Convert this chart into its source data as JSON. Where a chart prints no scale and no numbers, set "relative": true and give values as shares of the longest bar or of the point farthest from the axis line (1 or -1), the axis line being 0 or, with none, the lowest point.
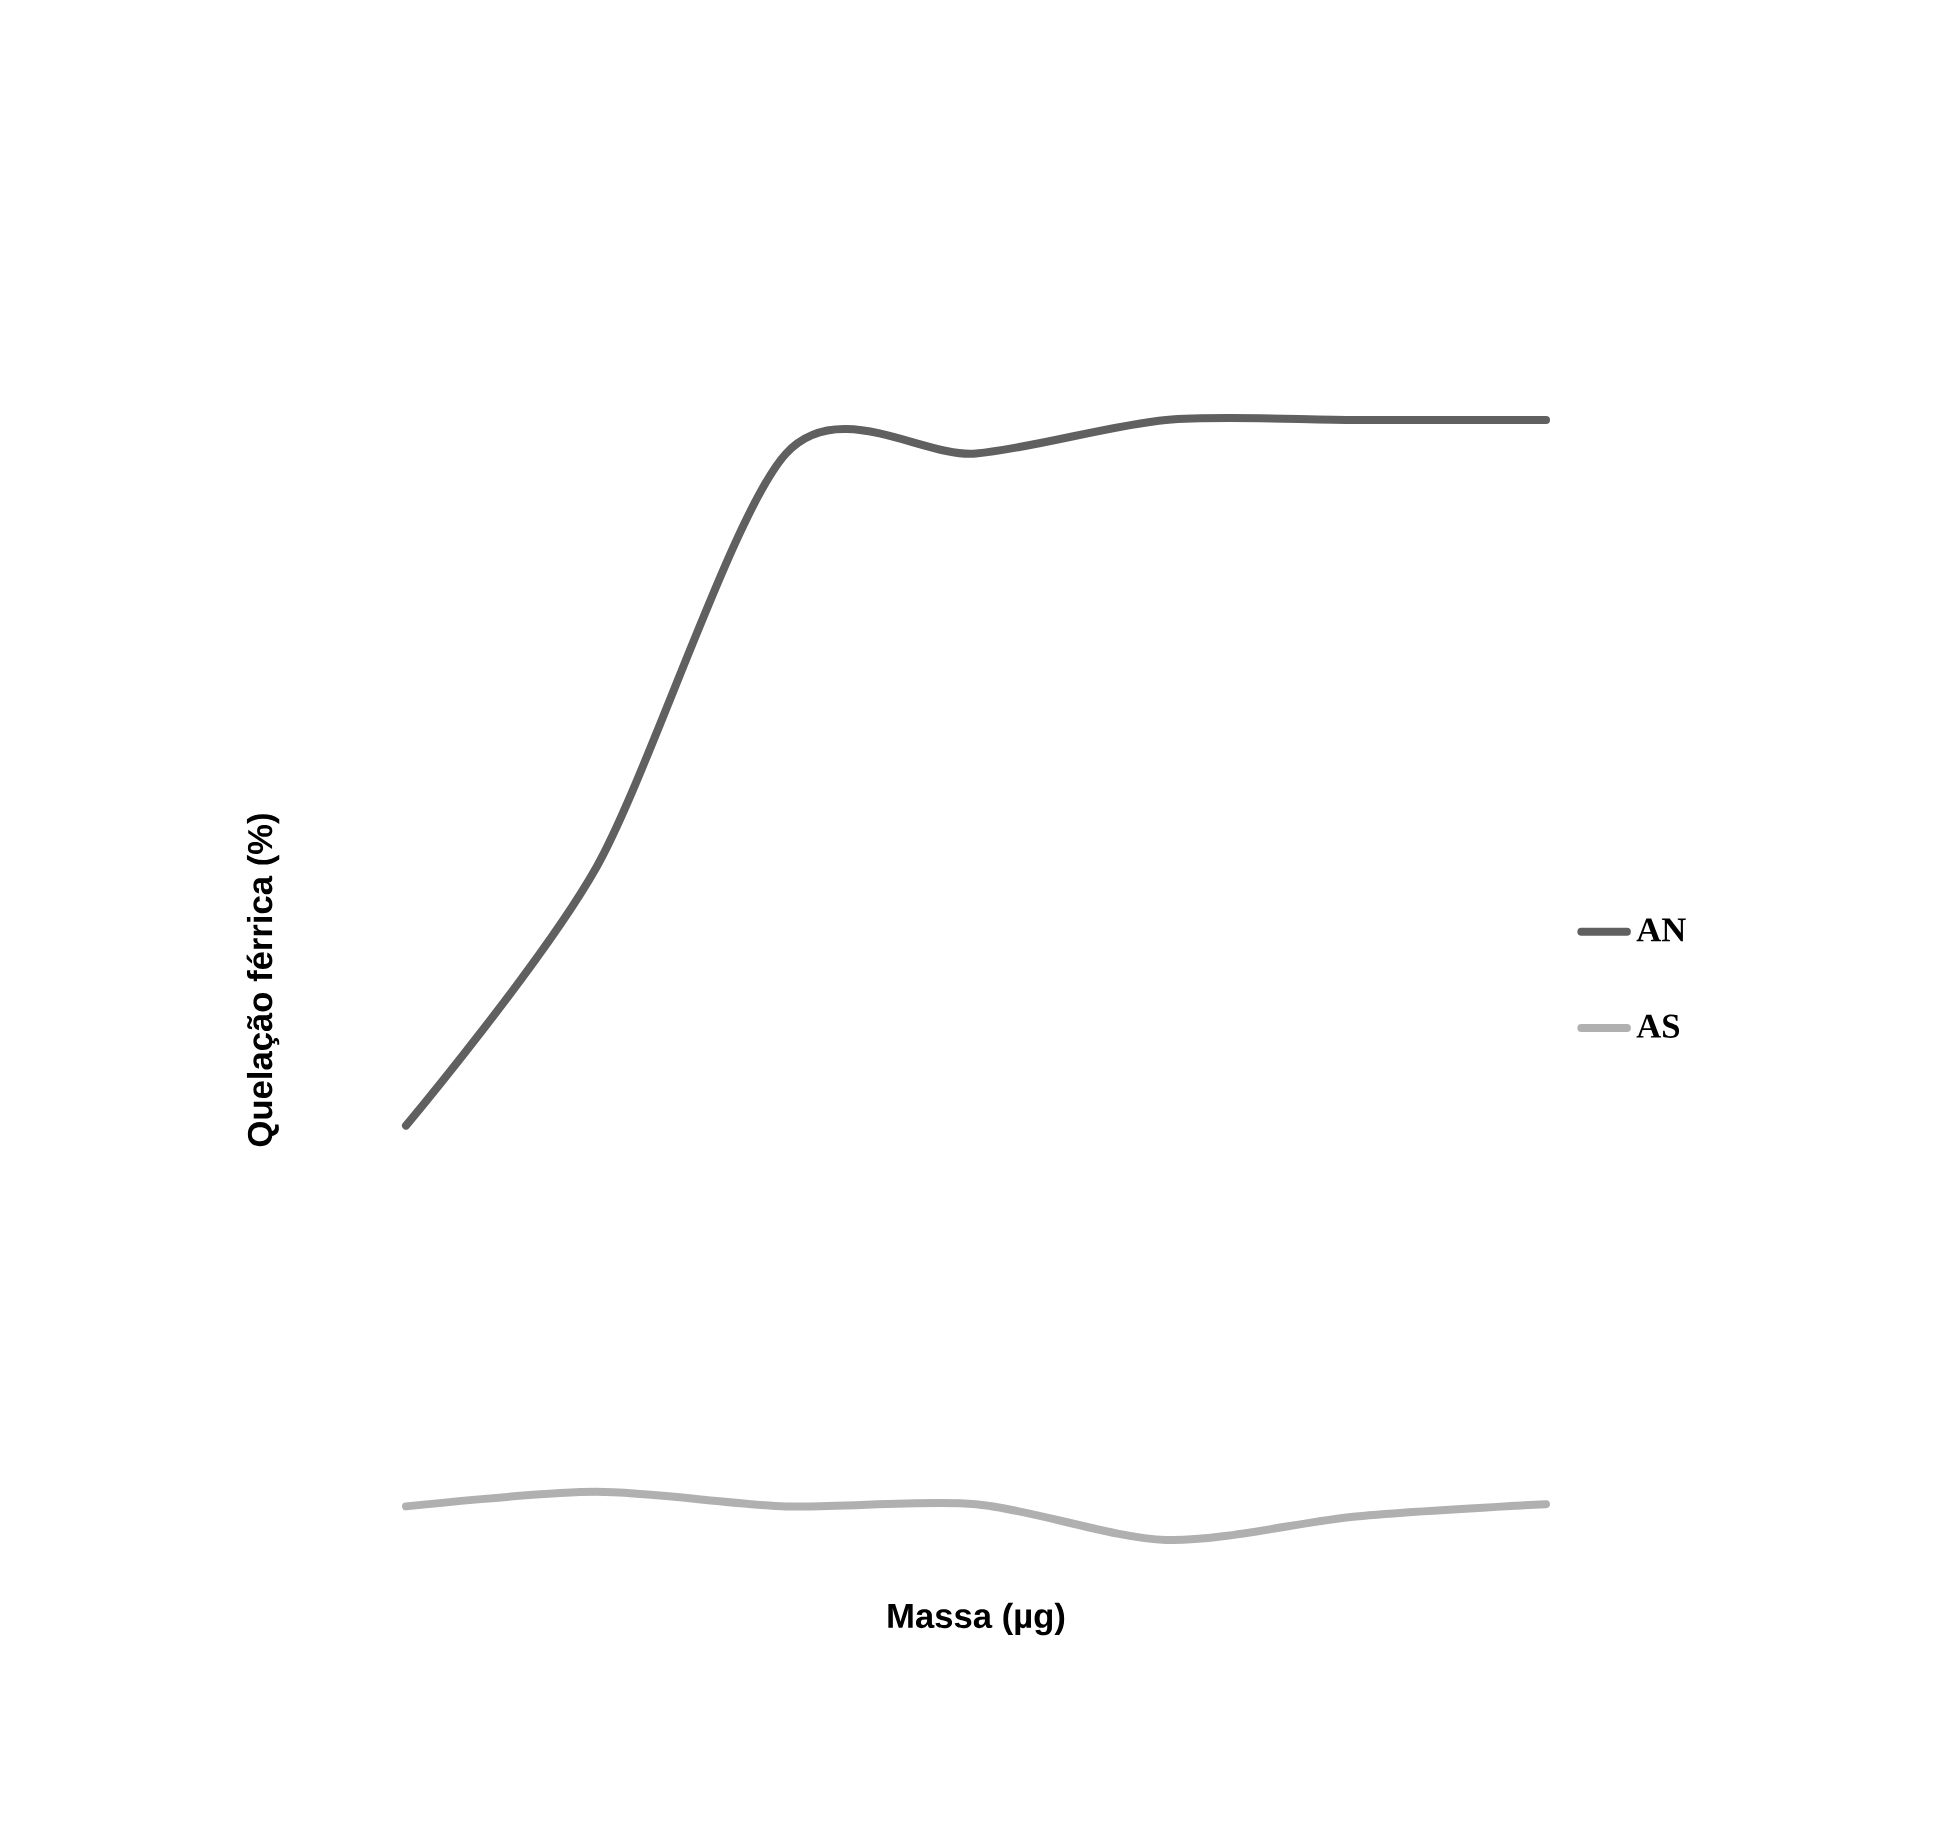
{
  "chart_data": {
    "type": "line",
    "xlabel": "Massa (µg)",
    "ylabel": "Quelação férrica (%)",
    "categories": [
      null,
      null,
      null,
      null,
      null,
      null,
      null
    ],
    "relative": true,
    "legend": "right",
    "marker": "none",
    "line_style": "solid",
    "series": [
      {
        "name": "AN",
        "color": "#606060",
        "values": [
          0.37,
          0.6,
          0.97,
          0.97,
          1,
          1,
          1
        ]
      },
      {
        "name": "AS",
        "color": "#b0b0b0",
        "values": [
          0.03,
          0.043,
          0.03,
          0.032,
          0,
          0.021,
          0.032
        ]
      }
    ]
  }
}
